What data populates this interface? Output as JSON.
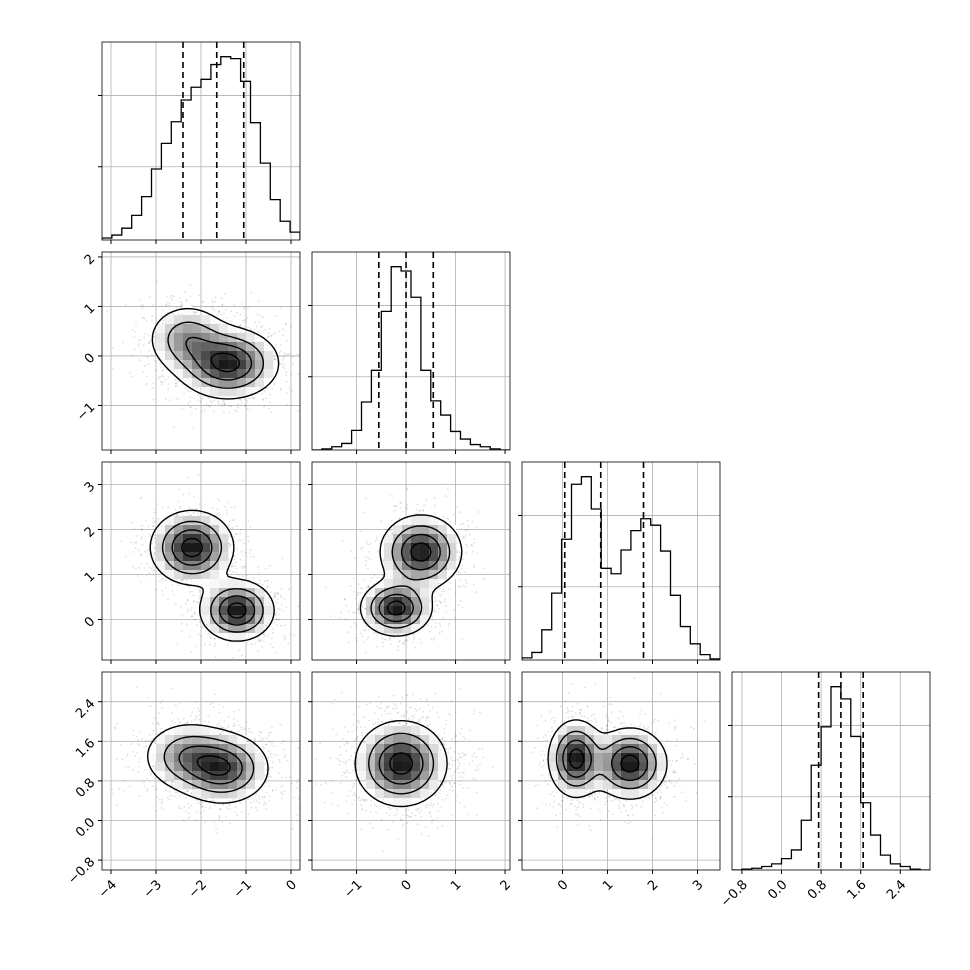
{
  "chart_data": {
    "type": "corner",
    "n_params": 4,
    "grid": true,
    "panels": [
      {
        "type": "histogram",
        "param": 0,
        "xlim": [
          -4.2,
          0.2
        ],
        "quantiles": [
          -2.4,
          -1.65,
          -1.05
        ],
        "hist": {
          "x0": -4.2,
          "bin_width": 0.22,
          "counts": [
            2,
            5,
            12,
            25,
            44,
            72,
            98,
            120,
            142,
            155,
            163,
            178,
            186,
            184,
            161,
            119,
            78,
            41,
            19,
            8
          ]
        }
      },
      {
        "type": "histogram",
        "param": 1,
        "xlim": [
          -1.9,
          2.1
        ],
        "quantiles": [
          -0.55,
          0.0,
          0.55
        ],
        "hist": {
          "x0": -1.9,
          "bin_width": 0.2,
          "counts": [
            0,
            1,
            3,
            6,
            18,
            44,
            73,
            127,
            168,
            164,
            140,
            73,
            45,
            32,
            17,
            10,
            5,
            3,
            1,
            0
          ]
        }
      },
      {
        "type": "histogram",
        "param": 2,
        "xlim": [
          -0.9,
          3.5
        ],
        "quantiles": [
          0.05,
          0.85,
          1.8
        ],
        "hist": {
          "x0": -0.9,
          "bin_width": 0.22,
          "counts": [
            2,
            7,
            28,
            62,
            112,
            163,
            170,
            140,
            85,
            80,
            102,
            120,
            131,
            125,
            101,
            60,
            31,
            15,
            5,
            1
          ]
        }
      },
      {
        "type": "histogram",
        "param": 3,
        "xlim": [
          -1.0,
          3.0
        ],
        "quantiles": [
          0.75,
          1.2,
          1.65
        ],
        "hist": {
          "x0": -1.0,
          "bin_width": 0.2,
          "counts": [
            0,
            1,
            2,
            4,
            7,
            13,
            23,
            57,
            120,
            164,
            210,
            196,
            153,
            77,
            40,
            17,
            7,
            4,
            1,
            0
          ]
        }
      },
      {
        "type": "scatter2d",
        "x_param": 0,
        "y_param": 1,
        "xlim": [
          -4.2,
          0.2
        ],
        "ylim": [
          -1.9,
          2.1
        ],
        "components": [
          {
            "mean": [
              -1.4,
              -0.15
            ],
            "sd": [
              0.55,
              0.35
            ],
            "weight": 0.65
          },
          {
            "mean": [
              -2.3,
              0.35
            ],
            "sd": [
              0.45,
              0.35
            ],
            "weight": 0.35
          }
        ]
      },
      {
        "type": "scatter2d",
        "x_param": 0,
        "y_param": 2,
        "xlim": [
          -4.2,
          0.2
        ],
        "ylim": [
          -0.9,
          3.5
        ],
        "components": [
          {
            "mean": [
              -1.2,
              0.2
            ],
            "sd": [
              0.4,
              0.33
            ],
            "weight": 0.5
          },
          {
            "mean": [
              -2.2,
              1.6
            ],
            "sd": [
              0.45,
              0.4
            ],
            "weight": 0.5
          }
        ]
      },
      {
        "type": "scatter2d",
        "x_param": 1,
        "y_param": 2,
        "xlim": [
          -1.9,
          2.1
        ],
        "ylim": [
          -0.9,
          3.5
        ],
        "components": [
          {
            "mean": [
              -0.2,
              0.25
            ],
            "sd": [
              0.35,
              0.3
            ],
            "weight": 0.5
          },
          {
            "mean": [
              0.3,
              1.5
            ],
            "sd": [
              0.4,
              0.4
            ],
            "weight": 0.5
          }
        ]
      },
      {
        "type": "scatter2d",
        "x_param": 0,
        "y_param": 3,
        "xlim": [
          -4.2,
          0.2
        ],
        "ylim": [
          -1.0,
          3.0
        ],
        "components": [
          {
            "mean": [
              -1.5,
              1.05
            ],
            "sd": [
              0.5,
              0.35
            ],
            "weight": 0.6
          },
          {
            "mean": [
              -2.3,
              1.3
            ],
            "sd": [
              0.5,
              0.35
            ],
            "weight": 0.4
          }
        ]
      },
      {
        "type": "scatter2d",
        "x_param": 1,
        "y_param": 3,
        "xlim": [
          -1.9,
          2.1
        ],
        "ylim": [
          -1.0,
          3.0
        ],
        "components": [
          {
            "mean": [
              -0.1,
              1.15
            ],
            "sd": [
              0.45,
              0.42
            ],
            "weight": 1.0
          }
        ]
      },
      {
        "type": "scatter2d",
        "x_param": 2,
        "y_param": 3,
        "xlim": [
          -0.9,
          3.5
        ],
        "ylim": [
          -1.0,
          3.0
        ],
        "components": [
          {
            "mean": [
              0.3,
              1.25
            ],
            "sd": [
              0.3,
              0.38
            ],
            "weight": 0.5
          },
          {
            "mean": [
              1.5,
              1.15
            ],
            "sd": [
              0.4,
              0.35
            ],
            "weight": 0.5
          }
        ]
      }
    ],
    "axes": {
      "bottom_x_ticks": [
        {
          "param": 0,
          "ticks": [
            -4,
            -3,
            -2,
            -1,
            0
          ],
          "labels": [
            "−4",
            "−3",
            "−2",
            "−1",
            "0"
          ]
        },
        {
          "param": 1,
          "ticks": [
            -1,
            0,
            1,
            2
          ],
          "labels": [
            "−1",
            "0",
            "1",
            "2"
          ]
        },
        {
          "param": 2,
          "ticks": [
            0,
            1,
            2,
            3
          ],
          "labels": [
            "0",
            "1",
            "2",
            "3"
          ]
        },
        {
          "param": 3,
          "ticks": [
            -0.8,
            0.0,
            0.8,
            1.6,
            2.4
          ],
          "labels": [
            "−0.8",
            "0.0",
            "0.8",
            "1.6",
            "2.4"
          ]
        }
      ],
      "left_y_ticks": [
        {
          "param": 1,
          "ticks": [
            -1,
            0,
            1,
            2
          ],
          "labels": [
            "−1",
            "0",
            "1",
            "2"
          ]
        },
        {
          "param": 2,
          "ticks": [
            0,
            1,
            2,
            3
          ],
          "labels": [
            "0",
            "1",
            "2",
            "3"
          ]
        },
        {
          "param": 3,
          "ticks": [
            -0.8,
            0.0,
            0.8,
            1.6,
            2.4
          ],
          "labels": [
            "−0.8",
            "0.0",
            "0.8",
            "1.6",
            "2.4"
          ]
        }
      ],
      "xlabel": "",
      "ylabel": "",
      "title": ""
    }
  }
}
